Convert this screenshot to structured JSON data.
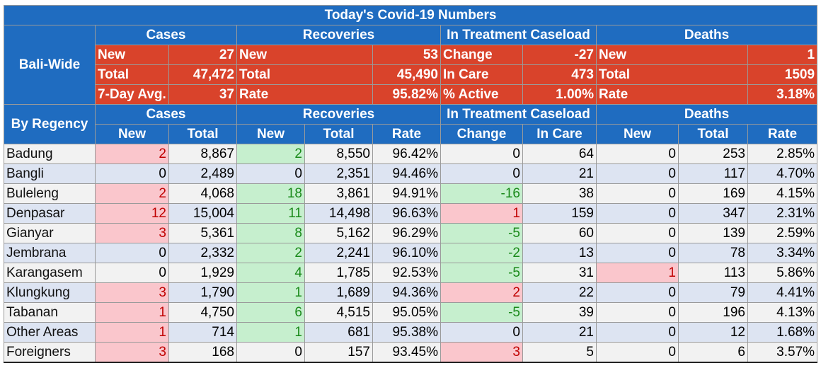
{
  "title": "Today's Covid-19 Numbers",
  "sections": {
    "cases": "Cases",
    "recoveries": "Recoveries",
    "treatment": "In Treatment Caseload",
    "deaths": "Deaths"
  },
  "bali_wide": {
    "label": "Bali-Wide",
    "rows": [
      {
        "cases_label": "New",
        "cases_value": "27",
        "rec_label": "New",
        "rec_value": "53",
        "treat_label": "Change",
        "treat_value": "-27",
        "deaths_label": "New",
        "deaths_value": "1"
      },
      {
        "cases_label": "Total",
        "cases_value": "47,472",
        "rec_label": "Total",
        "rec_value": "45,490",
        "treat_label": "In Care",
        "treat_value": "473",
        "deaths_label": "Total",
        "deaths_value": "1509"
      },
      {
        "cases_label": "7-Day Avg.",
        "cases_value": "37",
        "rec_label": "Rate",
        "rec_value": "95.82%",
        "treat_label": "% Active",
        "treat_value": "1.00%",
        "deaths_label": "Rate",
        "deaths_value": "3.18%"
      }
    ]
  },
  "by_regency": {
    "label": "By Regency",
    "columns": {
      "cases_new": "New",
      "cases_total": "Total",
      "rec_new": "New",
      "rec_total": "Total",
      "rec_rate": "Rate",
      "treat_change": "Change",
      "treat_incare": "In Care",
      "deaths_new": "New",
      "deaths_total": "Total",
      "deaths_rate": "Rate"
    },
    "rows": [
      {
        "name": "Badung",
        "cases_new": "2",
        "cases_total": "8,867",
        "rec_new": "2",
        "rec_total": "8,550",
        "rec_rate": "96.42%",
        "treat_change": "0",
        "treat_incare": "64",
        "deaths_new": "0",
        "deaths_total": "253",
        "deaths_rate": "2.85%"
      },
      {
        "name": "Bangli",
        "cases_new": "0",
        "cases_total": "2,489",
        "rec_new": "0",
        "rec_total": "2,351",
        "rec_rate": "94.46%",
        "treat_change": "0",
        "treat_incare": "21",
        "deaths_new": "0",
        "deaths_total": "117",
        "deaths_rate": "4.70%"
      },
      {
        "name": "Buleleng",
        "cases_new": "2",
        "cases_total": "4,068",
        "rec_new": "18",
        "rec_total": "3,861",
        "rec_rate": "94.91%",
        "treat_change": "-16",
        "treat_incare": "38",
        "deaths_new": "0",
        "deaths_total": "169",
        "deaths_rate": "4.15%"
      },
      {
        "name": "Denpasar",
        "cases_new": "12",
        "cases_total": "15,004",
        "rec_new": "11",
        "rec_total": "14,498",
        "rec_rate": "96.63%",
        "treat_change": "1",
        "treat_incare": "159",
        "deaths_new": "0",
        "deaths_total": "347",
        "deaths_rate": "2.31%"
      },
      {
        "name": "Gianyar",
        "cases_new": "3",
        "cases_total": "5,361",
        "rec_new": "8",
        "rec_total": "5,162",
        "rec_rate": "96.29%",
        "treat_change": "-5",
        "treat_incare": "60",
        "deaths_new": "0",
        "deaths_total": "139",
        "deaths_rate": "2.59%"
      },
      {
        "name": "Jembrana",
        "cases_new": "0",
        "cases_total": "2,332",
        "rec_new": "2",
        "rec_total": "2,241",
        "rec_rate": "96.10%",
        "treat_change": "-2",
        "treat_incare": "13",
        "deaths_new": "0",
        "deaths_total": "78",
        "deaths_rate": "3.34%"
      },
      {
        "name": "Karangasem",
        "cases_new": "0",
        "cases_total": "1,929",
        "rec_new": "4",
        "rec_total": "1,785",
        "rec_rate": "92.53%",
        "treat_change": "-5",
        "treat_incare": "31",
        "deaths_new": "1",
        "deaths_total": "113",
        "deaths_rate": "5.86%"
      },
      {
        "name": "Klungkung",
        "cases_new": "3",
        "cases_total": "1,790",
        "rec_new": "1",
        "rec_total": "1,689",
        "rec_rate": "94.36%",
        "treat_change": "2",
        "treat_incare": "22",
        "deaths_new": "0",
        "deaths_total": "79",
        "deaths_rate": "4.41%"
      },
      {
        "name": "Tabanan",
        "cases_new": "1",
        "cases_total": "4,750",
        "rec_new": "6",
        "rec_total": "4,515",
        "rec_rate": "95.05%",
        "treat_change": "-5",
        "treat_incare": "39",
        "deaths_new": "0",
        "deaths_total": "196",
        "deaths_rate": "4.13%"
      },
      {
        "name": "Other Areas",
        "cases_new": "1",
        "cases_total": "714",
        "rec_new": "1",
        "rec_total": "681",
        "rec_rate": "95.38%",
        "treat_change": "0",
        "treat_incare": "21",
        "deaths_new": "0",
        "deaths_total": "12",
        "deaths_rate": "1.68%"
      },
      {
        "name": "Foreigners",
        "cases_new": "3",
        "cases_total": "168",
        "rec_new": "0",
        "rec_total": "157",
        "rec_rate": "93.45%",
        "treat_change": "3",
        "treat_incare": "5",
        "deaths_new": "0",
        "deaths_total": "6",
        "deaths_rate": "3.57%"
      }
    ]
  },
  "colors": {
    "header_blue": "#1f6cc0",
    "bali_wide_red": "#d9432b",
    "increase_pink": "#fac6cc",
    "decrease_green": "#c6efce",
    "row_gray": "#f2f2f2",
    "row_blue": "#dde4f2"
  }
}
